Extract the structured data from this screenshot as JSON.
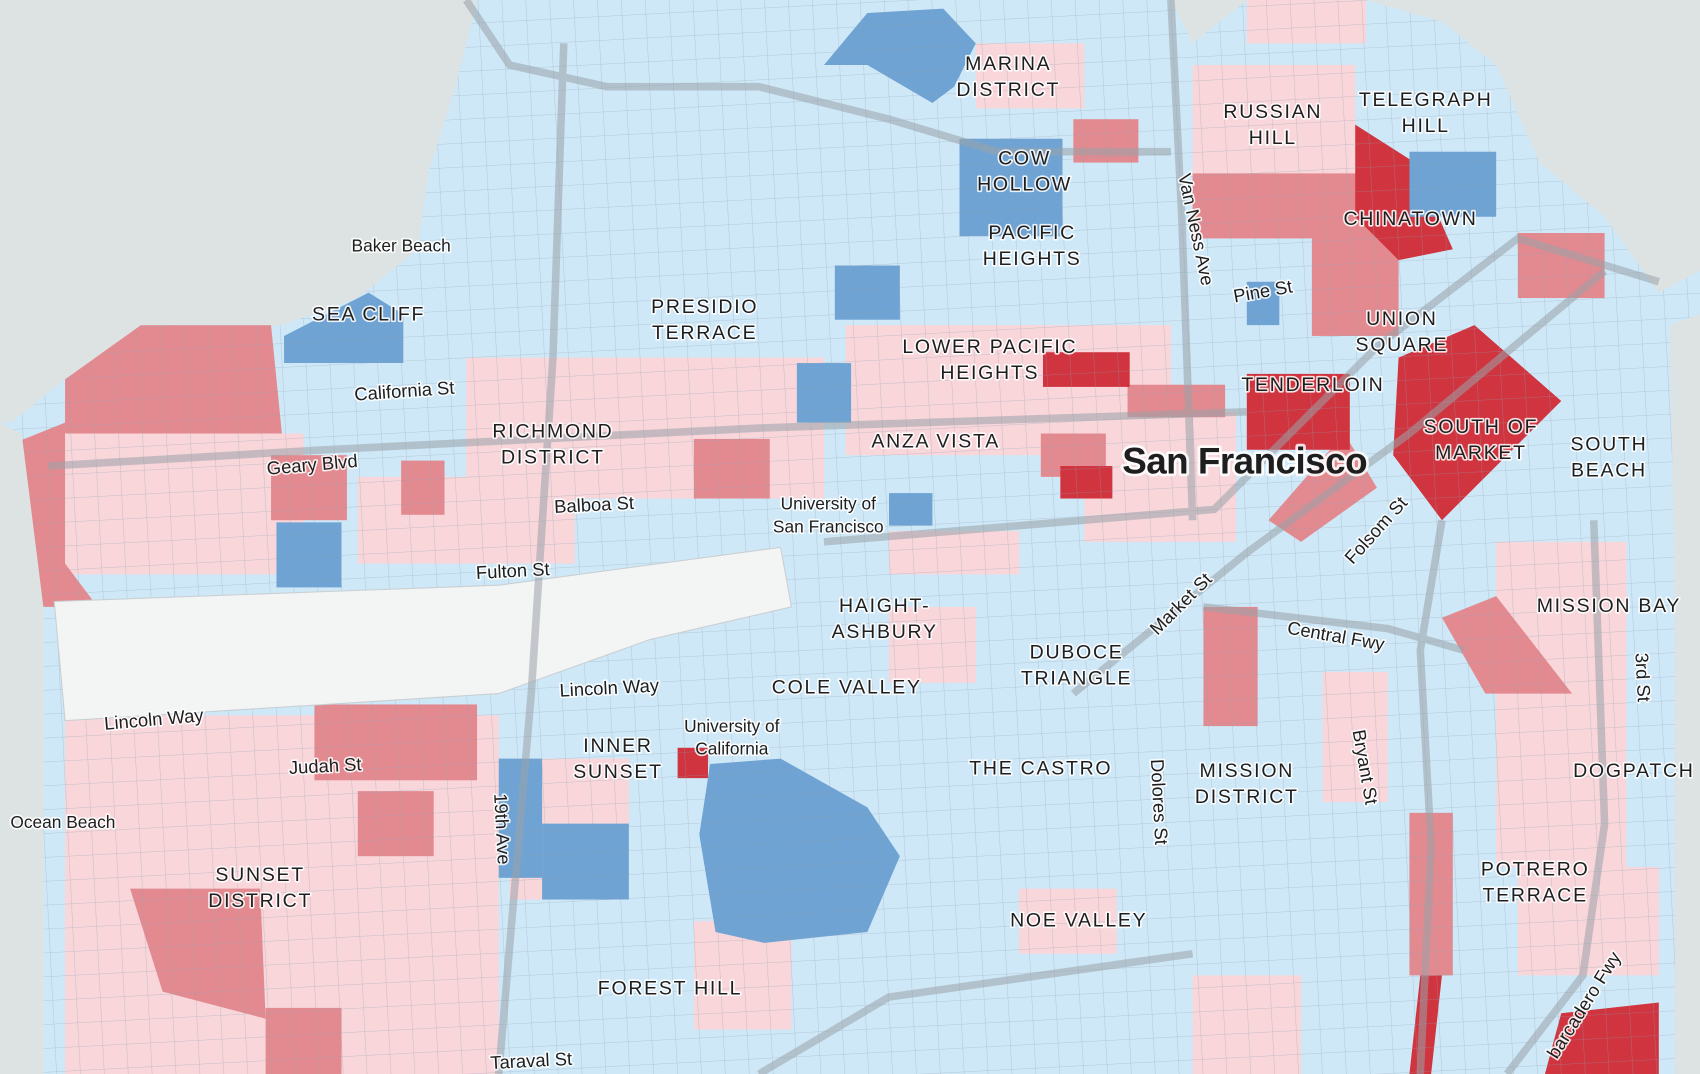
{
  "map": {
    "city": "San Francisco",
    "neighborhoods": [
      [
        "MARINA",
        "DISTRICT"
      ],
      [
        "COW",
        "HOLLOW"
      ],
      [
        "RUSSIAN",
        "HILL"
      ],
      [
        "TELEGRAPH",
        "HILL"
      ],
      [
        "CHINATOWN"
      ],
      [
        "PACIFIC",
        "HEIGHTS"
      ],
      [
        "SEA CLIFF"
      ],
      [
        "PRESIDIO",
        "TERRACE"
      ],
      [
        "LOWER PACIFIC",
        "HEIGHTS"
      ],
      [
        "UNION",
        "SQUARE"
      ],
      [
        "TENDERLOIN"
      ],
      [
        "RICHMOND",
        "DISTRICT"
      ],
      [
        "ANZA VISTA"
      ],
      [
        "SOUTH OF",
        "MARKET"
      ],
      [
        "SOUTH",
        "BEACH"
      ],
      [
        "HAIGHT-",
        "ASHBURY"
      ],
      [
        "MISSION BAY"
      ],
      [
        "DUBOCE",
        "TRIANGLE"
      ],
      [
        "COLE VALLEY"
      ],
      [
        "INNER",
        "SUNSET"
      ],
      [
        "THE CASTRO"
      ],
      [
        "MISSION",
        "DISTRICT"
      ],
      [
        "DOGPATCH"
      ],
      [
        "SUNSET",
        "DISTRICT"
      ],
      [
        "POTRERO",
        "TERRACE"
      ],
      [
        "NOE VALLEY"
      ],
      [
        "FOREST HILL"
      ]
    ],
    "places": [
      [
        "Baker Beach"
      ],
      [
        "Ocean Beach"
      ],
      [
        "University of",
        "San Francisco"
      ],
      [
        "University of",
        "California"
      ]
    ],
    "streets": [
      "California St",
      "Geary Blvd",
      "Balboa St",
      "Fulton St",
      "Van Ness Ave",
      "Pine St",
      "Folsom St",
      "Market St",
      "Central Fwy",
      "Lincoln Way",
      "Lincoln Way",
      "Judah St",
      "19th Ave",
      "Dolores St",
      "Bryant St",
      "3rd St",
      "barcadero Fwy",
      "Taraval St"
    ]
  }
}
